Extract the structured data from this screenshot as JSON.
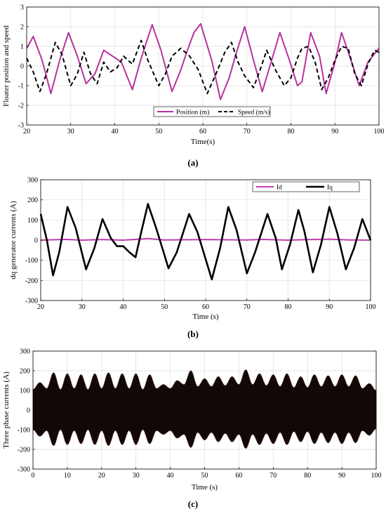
{
  "figure": {
    "panel_labels": [
      "(a)",
      "(b)",
      "(c)"
    ]
  },
  "chart_data": [
    {
      "type": "line",
      "title": "",
      "xlabel": "Time(s)",
      "ylabel": "Floater position and speed",
      "xlim": [
        20,
        100
      ],
      "ylim": [
        -3,
        3
      ],
      "xticks": [
        20,
        30,
        40,
        50,
        60,
        70,
        80,
        90,
        100
      ],
      "yticks": [
        -3,
        -2,
        -1,
        0,
        1,
        2,
        3
      ],
      "grid": true,
      "legend": {
        "placement": "bottom-right",
        "orientation": "horizontal"
      },
      "series": [
        {
          "name": "Position (m)",
          "color": "#b8329f",
          "style": "solid",
          "points": [
            [
              20,
              0.9
            ],
            [
              21.5,
              1.5
            ],
            [
              23.5,
              0.3
            ],
            [
              25.5,
              -1.4
            ],
            [
              27.5,
              0.3
            ],
            [
              29.5,
              1.7
            ],
            [
              31.5,
              0.5
            ],
            [
              33.5,
              -0.9
            ],
            [
              35.5,
              -0.4
            ],
            [
              37.5,
              0.8
            ],
            [
              39.5,
              0.5
            ],
            [
              41.5,
              0.2
            ],
            [
              44,
              -1.2
            ],
            [
              46,
              0.4
            ],
            [
              48.5,
              2.1
            ],
            [
              50.5,
              0.8
            ],
            [
              53,
              -1.3
            ],
            [
              55,
              -0.2
            ],
            [
              56.5,
              0.8
            ],
            [
              58,
              1.7
            ],
            [
              59.5,
              2.15
            ],
            [
              62,
              0.3
            ],
            [
              64,
              -1.7
            ],
            [
              66,
              -0.6
            ],
            [
              67.5,
              0.6
            ],
            [
              69.5,
              2.0
            ],
            [
              71.5,
              0.3
            ],
            [
              73.5,
              -1.3
            ],
            [
              75.5,
              0.2
            ],
            [
              77.5,
              1.7
            ],
            [
              79.5,
              0.4
            ],
            [
              81.5,
              -1.0
            ],
            [
              82.5,
              -0.8
            ],
            [
              84.5,
              1.7
            ],
            [
              86.5,
              0.5
            ],
            [
              88,
              -1.4
            ],
            [
              90,
              0.2
            ],
            [
              91.5,
              1.7
            ],
            [
              93.5,
              0.4
            ],
            [
              95.5,
              -1.0
            ],
            [
              97.5,
              0.2
            ],
            [
              100,
              0.9
            ]
          ]
        },
        {
          "name": "Speed (m/s)",
          "color": "#000000",
          "style": "dashed",
          "points": [
            [
              20,
              0.4
            ],
            [
              21.5,
              -0.3
            ],
            [
              23,
              -1.3
            ],
            [
              24.5,
              -0.4
            ],
            [
              26.5,
              1.2
            ],
            [
              28,
              0.6
            ],
            [
              30,
              -1.0
            ],
            [
              31.5,
              -0.4
            ],
            [
              33,
              0.7
            ],
            [
              34.5,
              -0.4
            ],
            [
              36,
              -0.9
            ],
            [
              37.5,
              0.2
            ],
            [
              39,
              -0.3
            ],
            [
              40.5,
              -0.1
            ],
            [
              42,
              0.5
            ],
            [
              44,
              0.1
            ],
            [
              46,
              1.3
            ],
            [
              47.5,
              0.3
            ],
            [
              50,
              -1.0
            ],
            [
              51.5,
              -0.4
            ],
            [
              53,
              0.5
            ],
            [
              55,
              0.9
            ],
            [
              57,
              0.5
            ],
            [
              59,
              -0.2
            ],
            [
              61,
              -1.4
            ],
            [
              63,
              -0.4
            ],
            [
              65,
              0.7
            ],
            [
              66.5,
              1.2
            ],
            [
              68,
              0.2
            ],
            [
              69.5,
              -0.5
            ],
            [
              71.5,
              -1.1
            ],
            [
              73,
              -0.2
            ],
            [
              74.5,
              0.8
            ],
            [
              76.5,
              -0.2
            ],
            [
              78.5,
              -1.0
            ],
            [
              80,
              -0.6
            ],
            [
              81.5,
              0.4
            ],
            [
              82.5,
              0.9
            ],
            [
              84,
              1.0
            ],
            [
              85.5,
              0.2
            ],
            [
              87,
              -1.2
            ],
            [
              88.5,
              -0.6
            ],
            [
              90,
              0.3
            ],
            [
              91.5,
              1.0
            ],
            [
              93,
              0.9
            ],
            [
              94.5,
              -0.4
            ],
            [
              96,
              -1.0
            ],
            [
              97.5,
              0.1
            ],
            [
              99,
              0.8
            ],
            [
              100,
              0.7
            ]
          ]
        }
      ]
    },
    {
      "type": "line",
      "title": "",
      "xlabel": "Time (s)",
      "ylabel": "dq generator currents (A)",
      "xlim": [
        20,
        100
      ],
      "ylim": [
        -300,
        300
      ],
      "xticks": [
        20,
        30,
        40,
        50,
        60,
        70,
        80,
        90,
        100
      ],
      "yticks": [
        -300,
        -200,
        -100,
        0,
        100,
        200,
        300
      ],
      "grid": true,
      "legend": {
        "placement": "top-right",
        "orientation": "horizontal"
      },
      "series": [
        {
          "name": "Id",
          "color": "#c040b0",
          "style": "solid",
          "points": [
            [
              20,
              0
            ],
            [
              26,
              4
            ],
            [
              30,
              0
            ],
            [
              35,
              3
            ],
            [
              40,
              0
            ],
            [
              46,
              8
            ],
            [
              50,
              1
            ],
            [
              60,
              3
            ],
            [
              70,
              1
            ],
            [
              74,
              4
            ],
            [
              80,
              0
            ],
            [
              85,
              3
            ],
            [
              90,
              5
            ],
            [
              95,
              1
            ],
            [
              100,
              0
            ]
          ]
        },
        {
          "name": "Iq",
          "color": "#000000",
          "style": "solid",
          "points": [
            [
              20,
              130
            ],
            [
              21.5,
              0
            ],
            [
              23,
              -175
            ],
            [
              24.5,
              -60
            ],
            [
              26.5,
              165
            ],
            [
              28.5,
              60
            ],
            [
              31,
              -145
            ],
            [
              33,
              -40
            ],
            [
              35,
              105
            ],
            [
              37,
              10
            ],
            [
              38.5,
              -30
            ],
            [
              40,
              -30
            ],
            [
              41.5,
              -60
            ],
            [
              43,
              -85
            ],
            [
              44.5,
              50
            ],
            [
              46,
              180
            ],
            [
              48,
              60
            ],
            [
              51,
              -140
            ],
            [
              53,
              -60
            ],
            [
              56,
              130
            ],
            [
              58,
              40
            ],
            [
              61.5,
              -195
            ],
            [
              63.5,
              -40
            ],
            [
              65.5,
              165
            ],
            [
              67.5,
              50
            ],
            [
              70,
              -165
            ],
            [
              72,
              -60
            ],
            [
              75,
              130
            ],
            [
              77,
              10
            ],
            [
              78.5,
              -145
            ],
            [
              80.5,
              -20
            ],
            [
              82.5,
              150
            ],
            [
              84,
              40
            ],
            [
              86,
              -160
            ],
            [
              88,
              -20
            ],
            [
              90,
              165
            ],
            [
              92,
              30
            ],
            [
              94,
              -145
            ],
            [
              96,
              -40
            ],
            [
              98,
              105
            ],
            [
              100,
              0
            ]
          ]
        }
      ]
    },
    {
      "type": "line",
      "title": "",
      "xlabel": "Time (s)",
      "ylabel": "Three phase currents (A)",
      "xlim": [
        0,
        100
      ],
      "ylim": [
        -300,
        300
      ],
      "xticks": [
        0,
        10,
        20,
        30,
        40,
        50,
        60,
        70,
        80,
        90,
        100
      ],
      "yticks": [
        -300,
        -200,
        -100,
        0,
        100,
        200,
        300
      ],
      "grid": true,
      "series": [
        {
          "name": "",
          "color": "#000000",
          "style": "envelope",
          "envelope_peak_points": [
            [
              0,
              105
            ],
            [
              2,
              140
            ],
            [
              4,
              110
            ],
            [
              6,
              190
            ],
            [
              8,
              105
            ],
            [
              10,
              185
            ],
            [
              12,
              110
            ],
            [
              14,
              180
            ],
            [
              16,
              105
            ],
            [
              18,
              185
            ],
            [
              20,
              110
            ],
            [
              22,
              190
            ],
            [
              24,
              110
            ],
            [
              26,
              185
            ],
            [
              28,
              110
            ],
            [
              30,
              185
            ],
            [
              32,
              105
            ],
            [
              34,
              180
            ],
            [
              36,
              110
            ],
            [
              38,
              130
            ],
            [
              40,
              110
            ],
            [
              42,
              150
            ],
            [
              44,
              130
            ],
            [
              46,
              200
            ],
            [
              48,
              120
            ],
            [
              50,
              160
            ],
            [
              52,
              120
            ],
            [
              54,
              170
            ],
            [
              56,
              125
            ],
            [
              58,
              170
            ],
            [
              60,
              130
            ],
            [
              62,
              205
            ],
            [
              64,
              130
            ],
            [
              66,
              185
            ],
            [
              68,
              125
            ],
            [
              70,
              180
            ],
            [
              72,
              120
            ],
            [
              74,
              185
            ],
            [
              76,
              115
            ],
            [
              78,
              170
            ],
            [
              80,
              115
            ],
            [
              82,
              180
            ],
            [
              84,
              120
            ],
            [
              86,
              175
            ],
            [
              88,
              120
            ],
            [
              90,
              180
            ],
            [
              92,
              120
            ],
            [
              94,
              175
            ],
            [
              96,
              110
            ],
            [
              98,
              135
            ],
            [
              100,
              100
            ]
          ]
        }
      ]
    }
  ]
}
